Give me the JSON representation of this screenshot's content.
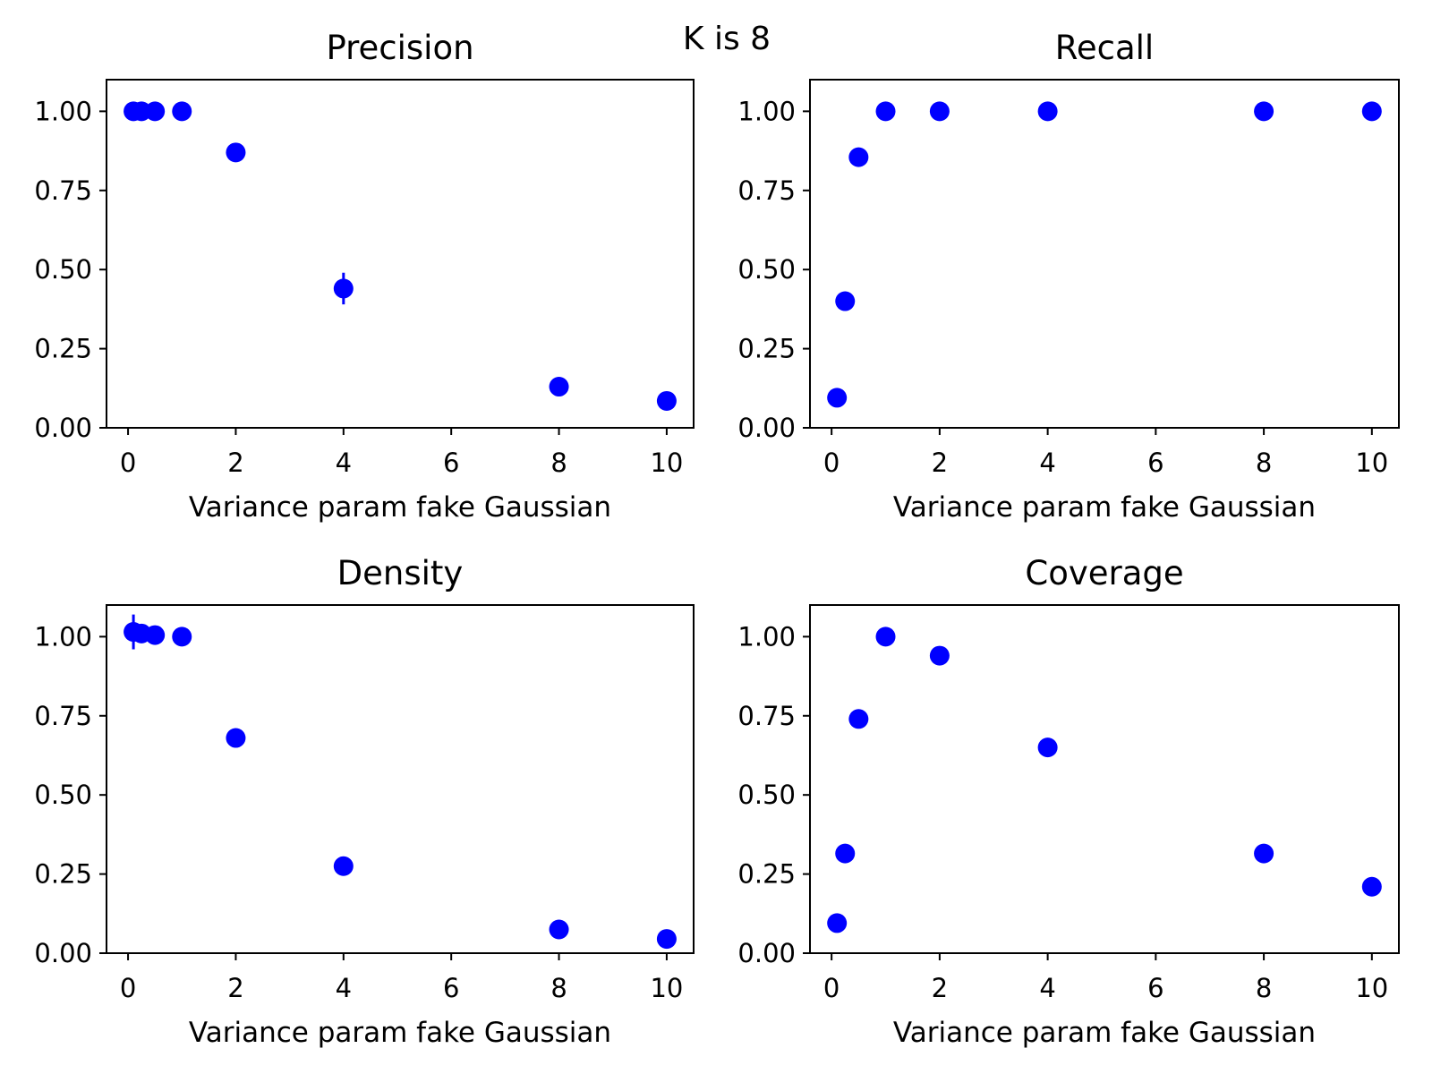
{
  "figure_title": "K is 8",
  "colors": {
    "marker": "#0000ff",
    "axis": "#000000",
    "background": "#ffffff"
  },
  "chart_data": [
    {
      "type": "scatter",
      "title": "Precision",
      "xlabel": "Variance param fake Gaussian",
      "ylabel": "",
      "xlim": [
        -0.4,
        10.5
      ],
      "ylim": [
        0,
        1.1
      ],
      "xticks": [
        0,
        2,
        4,
        6,
        8,
        10
      ],
      "yticks": [
        0.0,
        0.25,
        0.5,
        0.75,
        1.0
      ],
      "xtick_labels": [
        "0",
        "2",
        "4",
        "6",
        "8",
        "10"
      ],
      "ytick_labels": [
        "0.00",
        "0.25",
        "0.50",
        "0.75",
        "1.00"
      ],
      "x": [
        0.1,
        0.25,
        0.5,
        1,
        2,
        4,
        8,
        10
      ],
      "y": [
        1.0,
        1.0,
        1.0,
        1.0,
        0.87,
        0.44,
        0.13,
        0.085
      ],
      "yerr": [
        0,
        0,
        0,
        0,
        0,
        0.05,
        0,
        0
      ]
    },
    {
      "type": "scatter",
      "title": "Recall",
      "xlabel": "Variance param fake Gaussian",
      "ylabel": "",
      "xlim": [
        -0.4,
        10.5
      ],
      "ylim": [
        0,
        1.1
      ],
      "xticks": [
        0,
        2,
        4,
        6,
        8,
        10
      ],
      "yticks": [
        0.0,
        0.25,
        0.5,
        0.75,
        1.0
      ],
      "xtick_labels": [
        "0",
        "2",
        "4",
        "6",
        "8",
        "10"
      ],
      "ytick_labels": [
        "0.00",
        "0.25",
        "0.50",
        "0.75",
        "1.00"
      ],
      "x": [
        0.1,
        0.25,
        0.5,
        1,
        2,
        4,
        8,
        10
      ],
      "y": [
        0.095,
        0.4,
        0.855,
        1.0,
        1.0,
        1.0,
        1.0,
        1.0
      ],
      "yerr": [
        0,
        0,
        0,
        0,
        0,
        0,
        0,
        0
      ]
    },
    {
      "type": "scatter",
      "title": "Density",
      "xlabel": "Variance param fake Gaussian",
      "ylabel": "",
      "xlim": [
        -0.4,
        10.5
      ],
      "ylim": [
        0,
        1.1
      ],
      "xticks": [
        0,
        2,
        4,
        6,
        8,
        10
      ],
      "yticks": [
        0.0,
        0.25,
        0.5,
        0.75,
        1.0
      ],
      "xtick_labels": [
        "0",
        "2",
        "4",
        "6",
        "8",
        "10"
      ],
      "ytick_labels": [
        "0.00",
        "0.25",
        "0.50",
        "0.75",
        "1.00"
      ],
      "x": [
        0.1,
        0.25,
        0.5,
        1,
        2,
        4,
        8,
        10
      ],
      "y": [
        1.015,
        1.01,
        1.005,
        1.0,
        0.68,
        0.275,
        0.075,
        0.045
      ],
      "yerr": [
        0.055,
        0,
        0,
        0,
        0,
        0,
        0,
        0
      ]
    },
    {
      "type": "scatter",
      "title": "Coverage",
      "xlabel": "Variance param fake Gaussian",
      "ylabel": "",
      "xlim": [
        -0.4,
        10.5
      ],
      "ylim": [
        0,
        1.1
      ],
      "xticks": [
        0,
        2,
        4,
        6,
        8,
        10
      ],
      "yticks": [
        0.0,
        0.25,
        0.5,
        0.75,
        1.0
      ],
      "xtick_labels": [
        "0",
        "2",
        "4",
        "6",
        "8",
        "10"
      ],
      "ytick_labels": [
        "0.00",
        "0.25",
        "0.50",
        "0.75",
        "1.00"
      ],
      "x": [
        0.1,
        0.25,
        0.5,
        1,
        2,
        4,
        8,
        10
      ],
      "y": [
        0.095,
        0.315,
        0.74,
        1.0,
        0.94,
        0.65,
        0.315,
        0.21
      ],
      "yerr": [
        0,
        0,
        0,
        0,
        0,
        0.02,
        0,
        0
      ]
    }
  ]
}
